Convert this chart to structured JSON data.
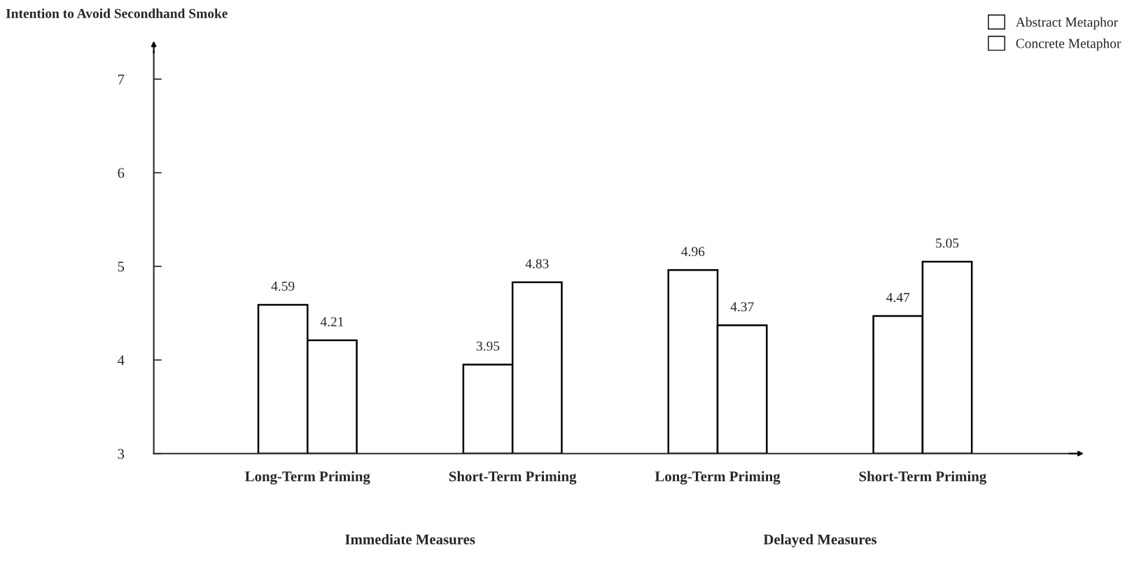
{
  "chart_data": {
    "type": "bar",
    "ylabel": "Intention to Avoid Secondhand Smoke",
    "categories": [
      "Long-Term Priming",
      "Short-Term Priming",
      "Long-Term Priming",
      "Short-Term Priming"
    ],
    "series": [
      {
        "name": "Abstract Metaphor",
        "color": "#ffffff",
        "values": [
          4.59,
          3.95,
          4.96,
          4.47
        ]
      },
      {
        "name": "Concrete Metaphor",
        "color": "#ffffff",
        "values": [
          4.21,
          4.83,
          4.37,
          5.05
        ]
      }
    ],
    "ylim": [
      3,
      7.3
    ],
    "yticks": [
      3,
      4,
      5,
      6,
      7
    ],
    "data_labels": true,
    "grid": false,
    "legend": "top right",
    "annotations": [
      "Immediate Measures",
      "Delayed Measures"
    ]
  }
}
